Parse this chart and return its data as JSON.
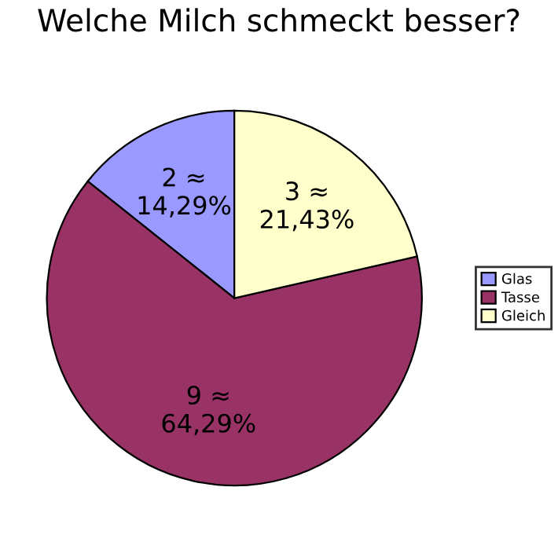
{
  "chart_data": {
    "type": "pie",
    "title": "Welche Milch schmeckt besser?",
    "categories": [
      "Glas",
      "Tasse",
      "Gleich"
    ],
    "values": [
      2,
      9,
      3
    ],
    "colors": [
      "#9999ff",
      "#993366",
      "#ffffcc"
    ],
    "value_labels": [
      "2 ≈\n14,29%",
      "9 ≈\n64,29%",
      "3 ≈\n21,43%"
    ],
    "legend": "right"
  }
}
